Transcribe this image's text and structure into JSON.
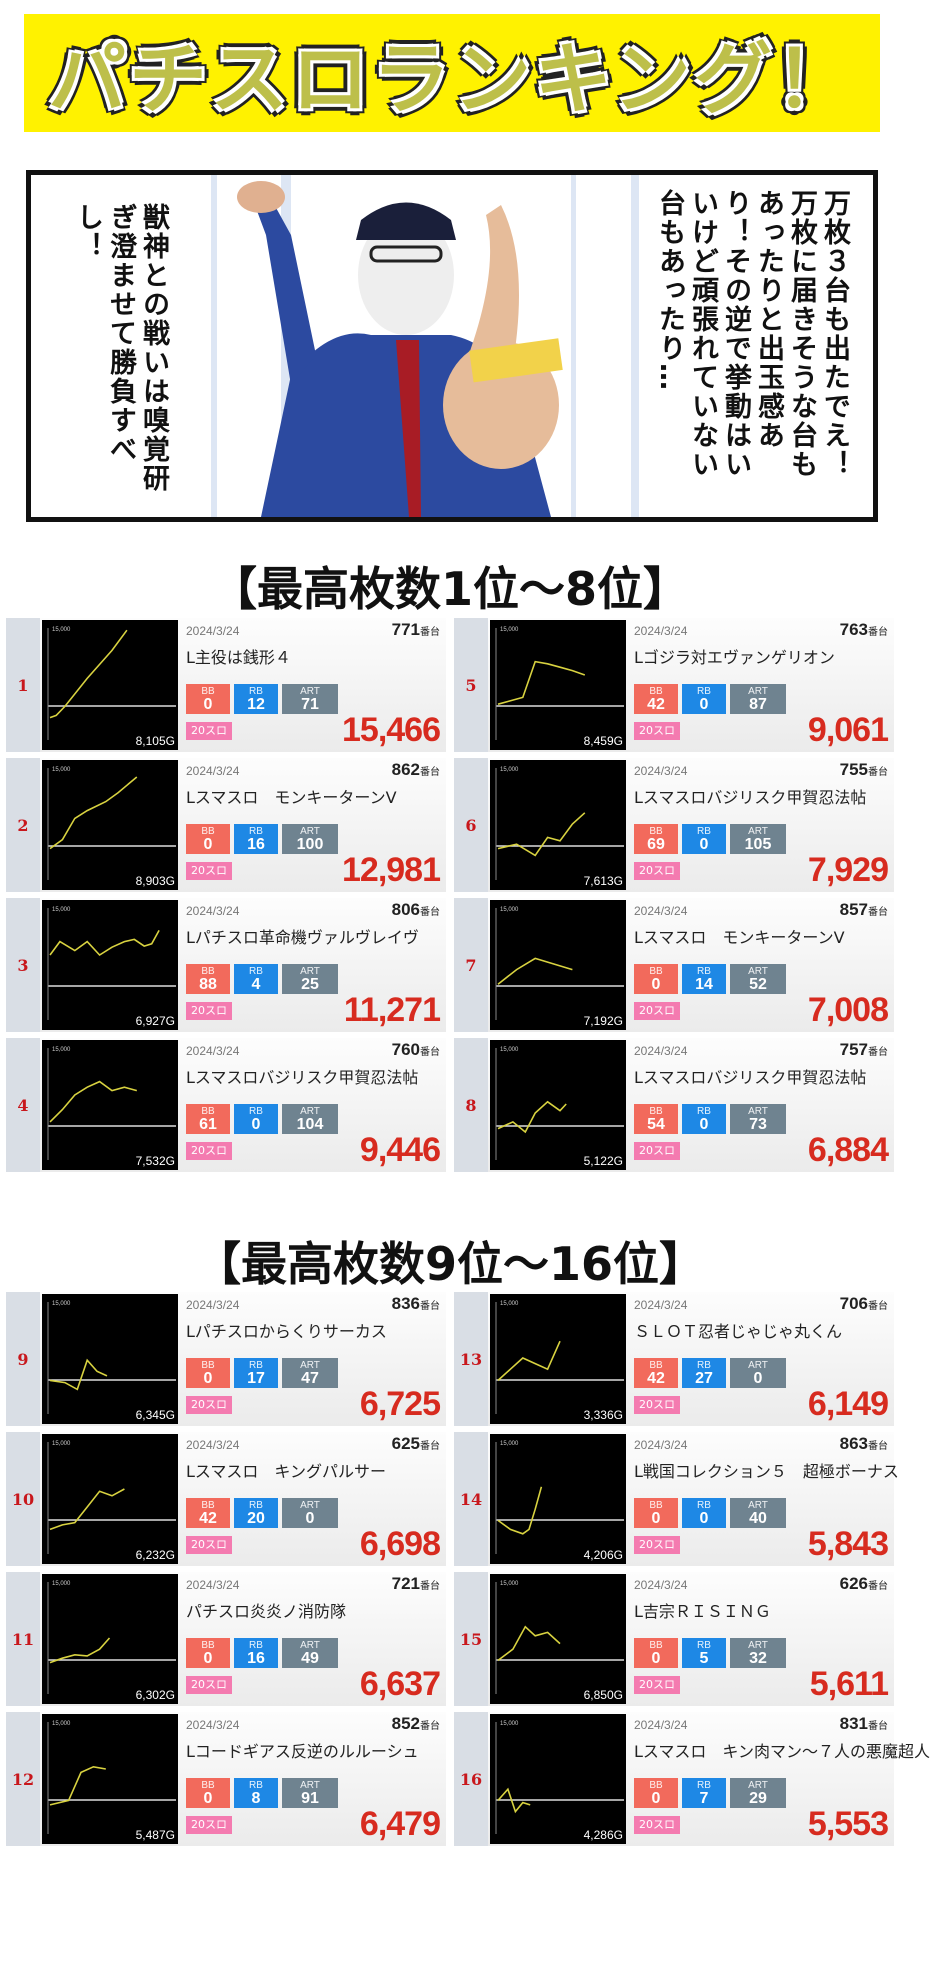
{
  "banner_title": "パチスロランキング！",
  "comic": {
    "left_text": "獣神との戦いは嗅覚研ぎ澄ませて勝負すべし！",
    "right_text": "万枚３台も出たでえ！万枚に届きそうな台もあったりと出玉感あり！その逆で挙動はいいけど頑張れていない台もあったり…"
  },
  "section1_title": "【最高枚数1位～8位】",
  "section2_title": "【最高枚数9位～16位】",
  "labels": {
    "bb": "BB",
    "rb": "RB",
    "art": "ART",
    "unit": "番台",
    "graph_max": "15,000"
  },
  "cards": [
    {
      "rank": "1",
      "date": "2024/3/24",
      "machine": "771",
      "name": "L主役は銭形４",
      "bb": "0",
      "rb": "12",
      "art": "71",
      "tag": "20スロ",
      "games": "8,105G",
      "coins": "15,466",
      "line": [
        [
          0,
          0.8
        ],
        [
          0.05,
          0.78
        ],
        [
          0.12,
          0.7
        ],
        [
          0.3,
          0.45
        ],
        [
          0.5,
          0.2
        ],
        [
          0.62,
          0.02
        ]
      ]
    },
    {
      "rank": "2",
      "date": "2024/3/24",
      "machine": "862",
      "name": "Lスマスロ　モンキーターンV",
      "bb": "0",
      "rb": "16",
      "art": "100",
      "tag": "20スロ",
      "games": "8,903G",
      "coins": "12,981",
      "line": [
        [
          0,
          0.72
        ],
        [
          0.1,
          0.64
        ],
        [
          0.2,
          0.45
        ],
        [
          0.3,
          0.38
        ],
        [
          0.45,
          0.3
        ],
        [
          0.55,
          0.22
        ],
        [
          0.7,
          0.08
        ]
      ]
    },
    {
      "rank": "3",
      "date": "2024/3/24",
      "machine": "806",
      "name": "Lパチスロ革命機ヴァルヴレイヴ",
      "bb": "88",
      "rb": "4",
      "art": "25",
      "tag": "20スロ",
      "games": "6,927G",
      "coins": "11,271",
      "line": [
        [
          0,
          0.42
        ],
        [
          0.08,
          0.3
        ],
        [
          0.2,
          0.38
        ],
        [
          0.3,
          0.3
        ],
        [
          0.4,
          0.42
        ],
        [
          0.5,
          0.35
        ],
        [
          0.6,
          0.3
        ],
        [
          0.68,
          0.28
        ],
        [
          0.76,
          0.34
        ],
        [
          0.82,
          0.32
        ],
        [
          0.88,
          0.2
        ]
      ]
    },
    {
      "rank": "4",
      "date": "2024/3/24",
      "machine": "760",
      "name": "Lスマスロバジリスク甲賀忍法帖",
      "bb": "61",
      "rb": "0",
      "art": "104",
      "tag": "20スロ",
      "games": "7,532G",
      "coins": "9,446",
      "line": [
        [
          0,
          0.66
        ],
        [
          0.1,
          0.55
        ],
        [
          0.2,
          0.42
        ],
        [
          0.3,
          0.35
        ],
        [
          0.4,
          0.3
        ],
        [
          0.5,
          0.38
        ],
        [
          0.6,
          0.35
        ],
        [
          0.7,
          0.38
        ]
      ]
    },
    {
      "rank": "5",
      "date": "2024/3/24",
      "machine": "763",
      "name": "Lゴジラ対エヴァンゲリオン",
      "bb": "42",
      "rb": "0",
      "art": "87",
      "tag": "20スロ",
      "games": "8,459G",
      "coins": "9,061",
      "line": [
        [
          0,
          0.68
        ],
        [
          0.2,
          0.62
        ],
        [
          0.3,
          0.3
        ],
        [
          0.4,
          0.32
        ],
        [
          0.5,
          0.35
        ],
        [
          0.6,
          0.38
        ],
        [
          0.7,
          0.42
        ]
      ]
    },
    {
      "rank": "6",
      "date": "2024/3/24",
      "machine": "755",
      "name": "Lスマスロバジリスク甲賀忍法帖",
      "bb": "69",
      "rb": "0",
      "art": "105",
      "tag": "20スロ",
      "games": "7,613G",
      "coins": "7,929",
      "line": [
        [
          0,
          0.72
        ],
        [
          0.15,
          0.68
        ],
        [
          0.3,
          0.78
        ],
        [
          0.4,
          0.62
        ],
        [
          0.5,
          0.65
        ],
        [
          0.6,
          0.5
        ],
        [
          0.7,
          0.4
        ]
      ]
    },
    {
      "rank": "7",
      "date": "2024/3/24",
      "machine": "857",
      "name": "Lスマスロ　モンキーターンV",
      "bb": "0",
      "rb": "14",
      "art": "52",
      "tag": "20スロ",
      "games": "7,192G",
      "coins": "7,008",
      "line": [
        [
          0,
          0.68
        ],
        [
          0.15,
          0.55
        ],
        [
          0.3,
          0.45
        ],
        [
          0.45,
          0.5
        ],
        [
          0.6,
          0.55
        ]
      ]
    },
    {
      "rank": "8",
      "date": "2024/3/24",
      "machine": "757",
      "name": "Lスマスロバジリスク甲賀忍法帖",
      "bb": "54",
      "rb": "0",
      "art": "73",
      "tag": "20スロ",
      "games": "5,122G",
      "coins": "6,884",
      "line": [
        [
          0,
          0.72
        ],
        [
          0.12,
          0.66
        ],
        [
          0.22,
          0.75
        ],
        [
          0.3,
          0.58
        ],
        [
          0.4,
          0.48
        ],
        [
          0.5,
          0.56
        ],
        [
          0.55,
          0.5
        ]
      ]
    },
    {
      "rank": "9",
      "date": "2024/3/24",
      "machine": "836",
      "name": "Lパチスロからくりサーカス",
      "bb": "0",
      "rb": "17",
      "art": "47",
      "tag": "20スロ",
      "games": "6,345G",
      "coins": "6,725",
      "line": [
        [
          0,
          0.7
        ],
        [
          0.12,
          0.72
        ],
        [
          0.22,
          0.78
        ],
        [
          0.3,
          0.52
        ],
        [
          0.38,
          0.62
        ],
        [
          0.46,
          0.66
        ]
      ]
    },
    {
      "rank": "10",
      "date": "2024/3/24",
      "machine": "625",
      "name": "Lスマスロ　キングパルサー",
      "bb": "42",
      "rb": "20",
      "art": "0",
      "tag": "20スロ",
      "games": "6,232G",
      "coins": "6,698",
      "line": [
        [
          0,
          0.78
        ],
        [
          0.1,
          0.74
        ],
        [
          0.2,
          0.72
        ],
        [
          0.3,
          0.58
        ],
        [
          0.4,
          0.44
        ],
        [
          0.5,
          0.48
        ],
        [
          0.6,
          0.42
        ]
      ]
    },
    {
      "rank": "11",
      "date": "2024/3/24",
      "machine": "721",
      "name": "パチスロ炎炎ノ消防隊",
      "bb": "0",
      "rb": "16",
      "art": "49",
      "tag": "20スロ",
      "games": "6,302G",
      "coins": "6,637",
      "line": [
        [
          0,
          0.72
        ],
        [
          0.1,
          0.68
        ],
        [
          0.2,
          0.65
        ],
        [
          0.3,
          0.66
        ],
        [
          0.4,
          0.6
        ],
        [
          0.48,
          0.5
        ]
      ]
    },
    {
      "rank": "12",
      "date": "2024/3/24",
      "machine": "852",
      "name": "Lコードギアス反逆のルルーシュ",
      "bb": "0",
      "rb": "8",
      "art": "91",
      "tag": "20スロ",
      "games": "5,487G",
      "coins": "6,479",
      "line": [
        [
          0,
          0.74
        ],
        [
          0.15,
          0.7
        ],
        [
          0.25,
          0.45
        ],
        [
          0.35,
          0.4
        ],
        [
          0.45,
          0.42
        ]
      ]
    },
    {
      "rank": "13",
      "date": "2024/3/24",
      "machine": "706",
      "name": "ＳＬＯＴ忍者じゃじゃ丸くん",
      "bb": "42",
      "rb": "27",
      "art": "0",
      "tag": "20スロ",
      "games": "3,336G",
      "coins": "6,149",
      "line": [
        [
          0,
          0.7
        ],
        [
          0.1,
          0.6
        ],
        [
          0.2,
          0.5
        ],
        [
          0.3,
          0.55
        ],
        [
          0.4,
          0.6
        ],
        [
          0.5,
          0.35
        ]
      ]
    },
    {
      "rank": "14",
      "date": "2024/3/24",
      "machine": "863",
      "name": "L戦国コレクション５　超極ボーナス",
      "bb": "0",
      "rb": "0",
      "art": "40",
      "tag": "20スロ",
      "games": "4,206G",
      "coins": "5,843",
      "line": [
        [
          0,
          0.7
        ],
        [
          0.1,
          0.78
        ],
        [
          0.2,
          0.82
        ],
        [
          0.25,
          0.78
        ],
        [
          0.3,
          0.6
        ],
        [
          0.35,
          0.4
        ]
      ]
    },
    {
      "rank": "15",
      "date": "2024/3/24",
      "machine": "626",
      "name": "L吉宗ＲＩＳＩＮＧ",
      "bb": "0",
      "rb": "5",
      "art": "32",
      "tag": "20スロ",
      "games": "6,850G",
      "coins": "5,611",
      "line": [
        [
          0,
          0.7
        ],
        [
          0.12,
          0.6
        ],
        [
          0.22,
          0.4
        ],
        [
          0.3,
          0.48
        ],
        [
          0.4,
          0.45
        ],
        [
          0.5,
          0.55
        ]
      ]
    },
    {
      "rank": "16",
      "date": "2024/3/24",
      "machine": "831",
      "name": "Lスマスロ　キン肉マン～７人の悪魔超人",
      "bb": "0",
      "rb": "7",
      "art": "29",
      "tag": "20スロ",
      "games": "4,286G",
      "coins": "5,553",
      "line": [
        [
          0,
          0.7
        ],
        [
          0.08,
          0.6
        ],
        [
          0.14,
          0.8
        ],
        [
          0.2,
          0.72
        ],
        [
          0.26,
          0.74
        ]
      ]
    }
  ]
}
